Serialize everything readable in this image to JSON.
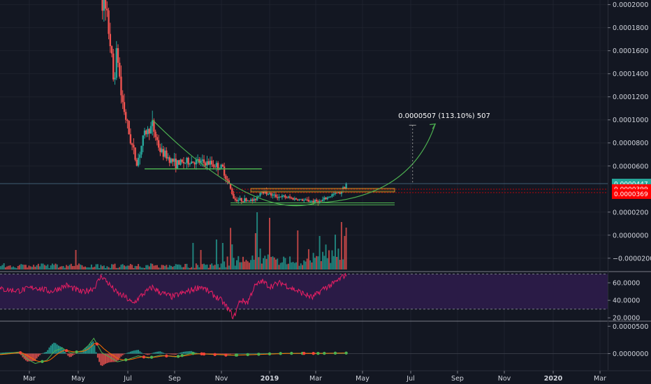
{
  "chart_data": {
    "type": "candlestick",
    "colors": {
      "background": "#131722",
      "up": "#26a69a",
      "down": "#ef5350",
      "rsi_line": "#e91e63",
      "rsi_band": "#2a1b46",
      "macd_line": "#2962ff",
      "signal_line": "#ff6d00",
      "annotation_arrow": "#4caf50",
      "support_box": "#4caf50",
      "resistance_box": "#f9a825",
      "price_badge": "#26a69a",
      "level_badge": "#ff0000"
    },
    "time_axis": {
      "labels": [
        {
          "text": "Mar",
          "bold": false
        },
        {
          "text": "May",
          "bold": false
        },
        {
          "text": "Jul",
          "bold": false
        },
        {
          "text": "Sep",
          "bold": false
        },
        {
          "text": "Nov",
          "bold": false
        },
        {
          "text": "2019",
          "bold": true
        },
        {
          "text": "Mar",
          "bold": false
        },
        {
          "text": "May",
          "bold": false
        },
        {
          "text": "Jul",
          "bold": false
        },
        {
          "text": "Sep",
          "bold": false
        },
        {
          "text": "Nov",
          "bold": false
        },
        {
          "text": "2020",
          "bold": true
        },
        {
          "text": "Mar",
          "bold": false
        }
      ]
    },
    "price_pane": {
      "ylim": [
        -3.1e-05,
        0.000204
      ],
      "tick_labels": [
        "0.0002000",
        "0.0001800",
        "0.0001600",
        "0.0001400",
        "0.0001200",
        "0.0001000",
        "0.0000800",
        "0.0000600",
        "0.0000447",
        "0.0000399",
        "0.0000369",
        "0.0000200",
        "0.0000000",
        "−0.0000200"
      ],
      "tick_values": [
        0.0002,
        0.00018,
        0.00016,
        0.00014,
        0.00012,
        0.0001,
        8e-05,
        6e-05,
        2e-05,
        0.0,
        -2e-05
      ],
      "last_price": {
        "label": "0.0000447",
        "value": 4.47e-05
      },
      "levels": [
        {
          "label": "0.0000399",
          "value": 3.99e-05
        },
        {
          "label": "0.0000369",
          "value": 3.69e-05
        }
      ],
      "projection_label": "0.0000507 (113.10%) 507",
      "projection_target": 9.54e-05
    },
    "rsi_pane": {
      "tick_labels": [
        "60.0000",
        "40.0000",
        "20.0000"
      ],
      "tick_values": [
        60,
        40,
        20
      ],
      "ylim": [
        17,
        72
      ],
      "band": [
        30,
        70
      ]
    },
    "macd_pane": {
      "tick_labels": [
        "0.0000500",
        "0.0000000"
      ],
      "tick_values": [
        5e-05,
        0.0
      ],
      "ylim": [
        -3e-05,
        5.8e-05
      ]
    }
  }
}
